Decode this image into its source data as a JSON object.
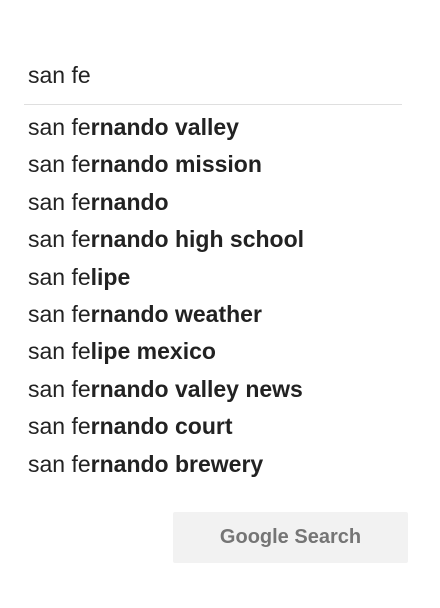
{
  "search": {
    "value": "san fe",
    "placeholder": ""
  },
  "suggestions": [
    {
      "typed": "san fe",
      "completion": "rnando valley"
    },
    {
      "typed": "san fe",
      "completion": "rnando mission"
    },
    {
      "typed": "san fe",
      "completion": "rnando"
    },
    {
      "typed": "san fe",
      "completion": "rnando high school"
    },
    {
      "typed": "san fe",
      "completion": "lipe"
    },
    {
      "typed": "san fe",
      "completion": "rnando weather"
    },
    {
      "typed": "san fe",
      "completion": "lipe mexico"
    },
    {
      "typed": "san fe",
      "completion": "rnando valley news"
    },
    {
      "typed": "san fe",
      "completion": "rnando court"
    },
    {
      "typed": "san fe",
      "completion": "rnando brewery"
    }
  ],
  "buttons": {
    "google_search_label": "Google Search"
  },
  "colors": {
    "text": "#222222",
    "button_bg": "#f2f2f2",
    "button_text": "#757575",
    "divider": "#dfdfdf"
  }
}
